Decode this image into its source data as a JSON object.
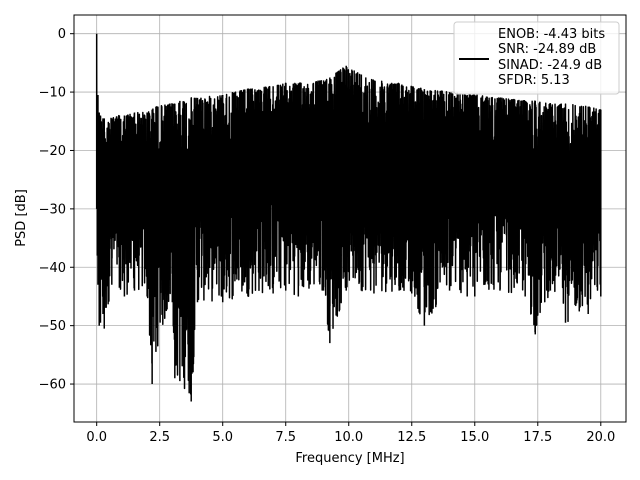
{
  "chart_data": {
    "type": "line",
    "xlabel": "Frequency [MHz]",
    "ylabel": "PSD [dB]",
    "xlim": [
      -0.9,
      21.0
    ],
    "ylim": [
      -66.5,
      3.2
    ],
    "xticks": [
      0.0,
      2.5,
      5.0,
      7.5,
      10.0,
      12.5,
      15.0,
      17.5,
      20.0
    ],
    "xtick_labels": [
      "0.0",
      "2.5",
      "5.0",
      "7.5",
      "10.0",
      "12.5",
      "15.0",
      "17.5",
      "20.0"
    ],
    "yticks": [
      0,
      -10,
      -20,
      -30,
      -40,
      -50,
      -60
    ],
    "ytick_labels": [
      "0",
      "−10",
      "−20",
      "−30",
      "−40",
      "−50",
      "−60"
    ],
    "grid": true,
    "legend": {
      "position": "top-right",
      "entries": [
        "ENOB: -4.43 bits",
        "SNR: -24.89 dB",
        "SINAD: -24.9 dB",
        "SFDR: 5.13"
      ]
    },
    "series": [
      {
        "color": "#000000",
        "x": [
          0,
          0.025,
          0.05,
          0.1,
          0.15,
          0.25,
          0.3,
          0.6,
          0.9,
          1.1,
          1.5,
          2.0,
          2.2,
          2.35,
          3.0,
          3.1,
          3.3,
          3.75,
          4.0,
          5.0,
          6.0,
          7.0,
          7.5,
          8.0,
          9.0,
          9.25,
          9.9,
          10.5,
          11.0,
          12.0,
          12.5,
          13.0,
          14.0,
          14.7,
          15.0,
          16.0,
          17.0,
          17.4,
          18.0,
          18.6,
          19.5,
          20.0
        ],
        "upper": [
          0.0,
          -12.0,
          -10.5,
          -13.5,
          -14.0,
          -14.5,
          -14.5,
          -14.5,
          -14.0,
          -14.0,
          -13.5,
          -13.5,
          -13.0,
          -12.5,
          -12.0,
          -12.0,
          -11.5,
          -11.0,
          -11.0,
          -10.5,
          -9.5,
          -9.0,
          -8.5,
          -8.5,
          -8.0,
          -7.5,
          -5.5,
          -7.0,
          -8.0,
          -8.5,
          -9.0,
          -9.5,
          -10.0,
          -10.5,
          -10.5,
          -11.0,
          -11.5,
          -11.5,
          -12.0,
          -12.0,
          -12.5,
          -13.0
        ],
        "lower": [
          -30.0,
          -38.0,
          -43.0,
          -50.0,
          -49.5,
          -48.0,
          -50.5,
          -43.0,
          -43.5,
          -45.0,
          -44.0,
          -45.0,
          -60.0,
          -54.5,
          -46.0,
          -59.0,
          -59.5,
          -63.0,
          -46.0,
          -46.0,
          -45.0,
          -44.5,
          -44.0,
          -45.0,
          -44.0,
          -53.0,
          -44.0,
          -44.0,
          -44.5,
          -44.0,
          -44.5,
          -50.0,
          -44.0,
          -45.0,
          -45.0,
          -44.0,
          -45.0,
          -51.5,
          -44.0,
          -49.5,
          -48.0,
          -45.0
        ]
      }
    ]
  }
}
